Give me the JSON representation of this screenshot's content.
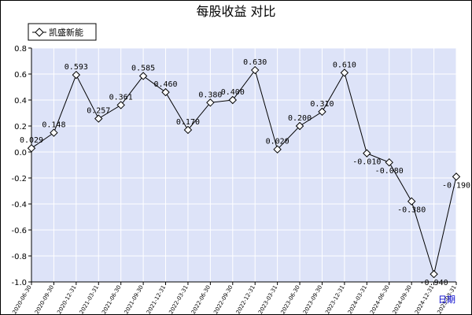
{
  "chart_data": {
    "type": "line",
    "title": "每股收益  对比",
    "xlabel": "日期",
    "ylabel": "",
    "ylim": [
      -1.0,
      0.8
    ],
    "yticks": [
      "0.8",
      "0.6",
      "0.4",
      "0.2",
      "0.0",
      "-0.2",
      "-0.4",
      "-0.6",
      "-0.8",
      "-1.0"
    ],
    "grid": true,
    "legend_position": "top-left",
    "categories": [
      "2020-06-30",
      "2020-09-30",
      "2020-12-31",
      "2021-03-31",
      "2021-06-30",
      "2021-09-30",
      "2021-12-31",
      "2022-03-31",
      "2022-06-30",
      "2022-09-30",
      "2022-12-31",
      "2023-03-31",
      "2023-06-30",
      "2023-09-30",
      "2023-12-31",
      "2024-03-31",
      "2024-06-30",
      "2024-09-30",
      "2024-12-31",
      "2025-03-31"
    ],
    "series": [
      {
        "name": "凯盛新能",
        "values": [
          0.029,
          0.148,
          0.593,
          0.257,
          0.361,
          0.585,
          0.46,
          0.17,
          0.38,
          0.4,
          0.63,
          0.02,
          0.2,
          0.31,
          0.61,
          -0.01,
          -0.08,
          -0.38,
          -0.94,
          -0.19
        ],
        "labels": [
          "0.029",
          "0.148",
          "0.593",
          "0.257",
          "0.361",
          "0.585",
          "0.460",
          "0.170",
          "0.380",
          "0.400",
          "0.630",
          "0.020",
          "0.200",
          "0.310",
          "0.610",
          "-0.010",
          "-0.080",
          "-0.380",
          "-0.940",
          "-0.190"
        ]
      }
    ]
  },
  "colors": {
    "plot_background": "#dde3f8",
    "grid": "#ffffff",
    "line": "#000000",
    "xlabel": "#0000cc"
  }
}
